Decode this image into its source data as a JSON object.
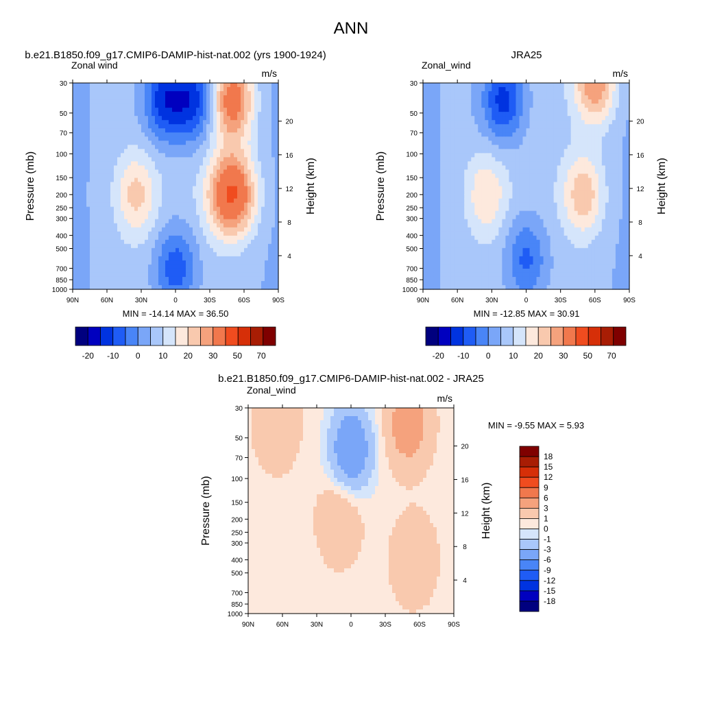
{
  "page_title": "ANN",
  "colors": {
    "levels_15": [
      "#00007f",
      "#0000bf",
      "#0033e0",
      "#1f5cf5",
      "#4985f7",
      "#7aa6f8",
      "#a9c7fa",
      "#d5e5fb",
      "#fde9dd",
      "#f9c9ae",
      "#f5a27d",
      "#f1784d",
      "#f04c1f",
      "#d62f08",
      "#a81d04",
      "#7f0000"
    ],
    "levels_16": [
      "#00007f",
      "#0000bf",
      "#0033e0",
      "#1f5cf5",
      "#4985f7",
      "#7aa6f8",
      "#a9c7fa",
      "#d5e5fb",
      "#fde9dd",
      "#f9c9ae",
      "#f5a27d",
      "#f1784d",
      "#f04c1f",
      "#d62f08",
      "#a81d04",
      "#7f0000"
    ]
  },
  "chart_data": [
    {
      "type": "heatmap",
      "title": "b.e21.B1850.f09_g17.CMIP6-DAMIP-hist-nat.002 (yrs 1900-1924)",
      "left_label": "Zonal wind",
      "units": "m/s",
      "ylabel": "Pressure (mb)",
      "ylabel_right": "Height (km)",
      "x_ticks": [
        "90N",
        "60N",
        "30N",
        "0",
        "30S",
        "60S",
        "90S"
      ],
      "y_ticks": [
        "30",
        "50",
        "70",
        "100",
        "150",
        "200",
        "250",
        "300",
        "400",
        "500",
        "700",
        "850",
        "1000"
      ],
      "y_ticks_right": [
        "4",
        "8",
        "12",
        "16",
        "20"
      ],
      "ylim": [
        1000,
        30
      ],
      "stats": "MIN = -14.14  MAX =  36.50",
      "min": -14.14,
      "max": 36.5,
      "colorbar_labels": [
        "-20",
        "-10",
        "0",
        "10",
        "20",
        "30",
        "50",
        "70"
      ],
      "features": [
        {
          "lat": 10,
          "p": 40,
          "value": -12
        },
        {
          "lat": -15,
          "p": 40,
          "value": -12
        },
        {
          "lat": -50,
          "p": 40,
          "value": 35
        },
        {
          "lat": -42,
          "p": 200,
          "value": 25
        },
        {
          "lat": -55,
          "p": 200,
          "value": 28
        },
        {
          "lat": 35,
          "p": 200,
          "value": 22
        },
        {
          "lat": 0,
          "p": 700,
          "value": -8
        }
      ]
    },
    {
      "type": "heatmap",
      "title": "JRA25",
      "left_label": "Zonal_wind",
      "units": "m/s",
      "ylabel": "Pressure (mb)",
      "ylabel_right": "Height (km)",
      "x_ticks": [
        "90N",
        "60N",
        "30N",
        "0",
        "30S",
        "60S",
        "90S"
      ],
      "y_ticks": [
        "30",
        "50",
        "70",
        "100",
        "150",
        "200",
        "250",
        "300",
        "400",
        "500",
        "700",
        "850",
        "1000"
      ],
      "y_ticks_right": [
        "4",
        "8",
        "12",
        "16",
        "20"
      ],
      "ylim": [
        1000,
        30
      ],
      "stats": "MIN = -12.85  MAX =  30.91",
      "min": -12.85,
      "max": 30.91,
      "colorbar_labels": [
        "-20",
        "-10",
        "0",
        "10",
        "20",
        "30",
        "50",
        "70"
      ],
      "features": [
        {
          "lat": 20,
          "p": 40,
          "value": -12
        },
        {
          "lat": -60,
          "p": 30,
          "value": 30
        },
        {
          "lat": -50,
          "p": 200,
          "value": 24
        },
        {
          "lat": 35,
          "p": 200,
          "value": 20
        },
        {
          "lat": 0,
          "p": 600,
          "value": -6
        }
      ]
    },
    {
      "type": "heatmap",
      "title": "b.e21.B1850.f09_g17.CMIP6-DAMIP-hist-nat.002 - JRA25",
      "left_label": "Zonal_wind",
      "units": "m/s",
      "ylabel": "Pressure (mb)",
      "ylabel_right": "Height (km)",
      "x_ticks": [
        "90N",
        "60N",
        "30N",
        "0",
        "30S",
        "60S",
        "90S"
      ],
      "y_ticks": [
        "30",
        "50",
        "70",
        "100",
        "150",
        "200",
        "250",
        "300",
        "400",
        "500",
        "700",
        "850",
        "1000"
      ],
      "y_ticks_right": [
        "4",
        "8",
        "12",
        "16",
        "20"
      ],
      "ylim": [
        1000,
        30
      ],
      "stats": "MIN =  -9.55  MAX =   5.93",
      "min": -9.55,
      "max": 5.93,
      "colorbar_labels": [
        "18",
        "15",
        "12",
        "9",
        "6",
        "3",
        "1",
        "0",
        "-1",
        "-3",
        "-6",
        "-9",
        "-12",
        "-15",
        "-18"
      ],
      "features": [
        {
          "lat": 0,
          "p": 60,
          "value": -6
        },
        {
          "lat": 65,
          "p": 40,
          "value": 3
        },
        {
          "lat": -50,
          "p": 40,
          "value": 5
        },
        {
          "lat": 10,
          "p": 200,
          "value": 3
        },
        {
          "lat": -55,
          "p": 400,
          "value": 3
        }
      ]
    }
  ]
}
